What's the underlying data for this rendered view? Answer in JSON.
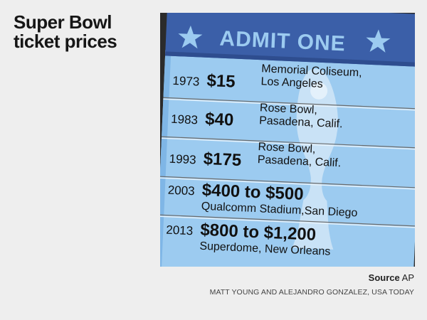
{
  "title": {
    "line1": "Super Bowl",
    "line2": "ticket prices"
  },
  "ticket": {
    "header": "ADMIT ONE",
    "rows": [
      {
        "year": "1973",
        "price": "$15",
        "venue_line1": "Memorial Coliseum,",
        "venue_line2": "Los Angeles"
      },
      {
        "year": "1983",
        "price": "$40",
        "venue_line1": "Rose Bowl,",
        "venue_line2": "Pasadena, Calif."
      },
      {
        "year": "1993",
        "price": "$175",
        "venue_line1": "Rose Bowl,",
        "venue_line2": "Pasadena, Calif."
      },
      {
        "year": "2003",
        "price": "$400 to $500",
        "venue_line1": "Qualcomm Stadium,San Diego",
        "venue_line2": ""
      },
      {
        "year": "2013",
        "price": "$800 to $1,200",
        "venue_line1": "Superdome, New Orleans",
        "venue_line2": ""
      }
    ]
  },
  "footer": {
    "source_label": "Source",
    "source_value": "AP",
    "credit": "MATT YOUNG AND ALEJANDRO GONZALEZ, USA TODAY"
  },
  "colors": {
    "header_blue": "#3b5fa8",
    "ticket_light": "#9ccbf0",
    "trophy": "#c9e2f6",
    "text_dark": "#111111"
  }
}
